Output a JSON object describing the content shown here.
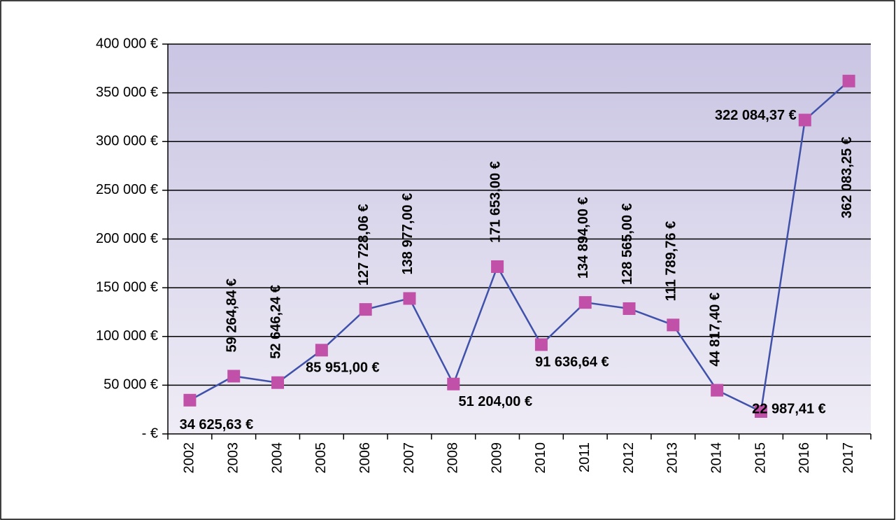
{
  "chart_data": {
    "type": "line",
    "categories": [
      "2002",
      "2003",
      "2004",
      "2005",
      "2006",
      "2007",
      "2008",
      "2009",
      "2010",
      "2011",
      "2012",
      "2013",
      "2014",
      "2015",
      "2016",
      "2017"
    ],
    "series": [
      {
        "color": "#3f51a8",
        "marker_color": "#c050a8",
        "values": [
          34625.63,
          59264.84,
          52646.24,
          85951.0,
          127728.06,
          138977.0,
          51204.0,
          171653.0,
          91636.64,
          134894.0,
          128565.0,
          111789.76,
          44817.4,
          22987.41,
          322084.37,
          362083.25
        ],
        "value_labels": [
          "34 625,63 €",
          "59 264,84 €",
          "52 646,24 €",
          "85 951,00 €",
          "127 728,06 €",
          "138 977,00 €",
          "51 204,00 €",
          "171 653,00 €",
          "91 636,64 €",
          "134 894,00 €",
          "128 565,00 €",
          "111 789,76 €",
          "44 817,40 €",
          "22 987,41 €",
          "322 084,37 €",
          "362 083,25 €"
        ]
      }
    ],
    "ylim": [
      0,
      400000
    ],
    "yticks": [
      {
        "value": 0,
        "label": "- €"
      },
      {
        "value": 50000,
        "label": "50 000 €"
      },
      {
        "value": 100000,
        "label": "100 000 €"
      },
      {
        "value": 150000,
        "label": "150 000 €"
      },
      {
        "value": 200000,
        "label": "200 000 €"
      },
      {
        "value": 250000,
        "label": "250 000 €"
      },
      {
        "value": 300000,
        "label": "300 000 €"
      },
      {
        "value": 350000,
        "label": "350 000 €"
      },
      {
        "value": 400000,
        "label": "400 000 €"
      }
    ],
    "grid": true
  }
}
